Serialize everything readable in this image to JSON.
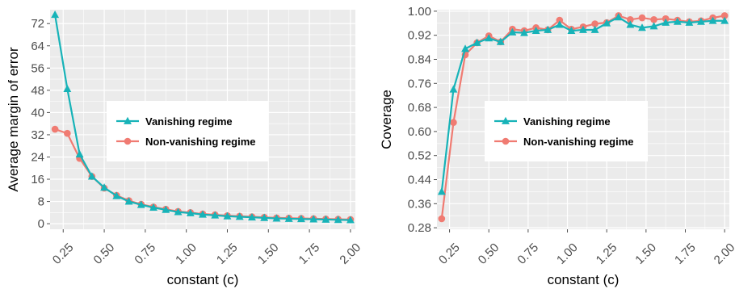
{
  "colors": {
    "panel_bg": "#ebebeb",
    "grid": "#ffffff",
    "vanishing": "#17b3b8",
    "non_vanishing": "#f07b72",
    "tick": "#4d4d4d"
  },
  "chart_data": [
    {
      "type": "line",
      "xlabel": "constant (c)",
      "ylabel": "Average margin of error",
      "xlim": [
        0.17,
        2.03
      ],
      "ylim": [
        -2,
        77
      ],
      "x_ticks": [
        "0.25",
        "0.50",
        "0.75",
        "1.00",
        "1.25",
        "1.50",
        "1.75",
        "2.00"
      ],
      "y_ticks": [
        "0",
        "8",
        "16",
        "24",
        "32",
        "40",
        "48",
        "56",
        "64",
        "72"
      ],
      "grid": true,
      "legend_position": "center",
      "x": [
        0.2,
        0.275,
        0.35,
        0.425,
        0.5,
        0.575,
        0.65,
        0.725,
        0.8,
        0.875,
        0.95,
        1.025,
        1.1,
        1.175,
        1.25,
        1.325,
        1.4,
        1.475,
        1.55,
        1.625,
        1.7,
        1.775,
        1.85,
        1.925,
        2.0
      ],
      "series": [
        {
          "name": "Vanishing regime",
          "marker": "triangle",
          "values": [
            75.2,
            48.5,
            25.0,
            17.0,
            13.0,
            10.0,
            8.0,
            6.8,
            5.8,
            5.0,
            4.2,
            3.8,
            3.3,
            3.0,
            2.7,
            2.5,
            2.3,
            2.1,
            1.9,
            1.8,
            1.7,
            1.6,
            1.5,
            1.4,
            1.3
          ]
        },
        {
          "name": "Non-vanishing regime",
          "marker": "circle",
          "values": [
            34.0,
            32.5,
            23.5,
            17.0,
            12.8,
            10.2,
            8.3,
            7.0,
            6.0,
            5.2,
            4.4,
            4.0,
            3.5,
            3.2,
            2.9,
            2.7,
            2.5,
            2.3,
            2.1,
            2.0,
            1.9,
            1.8,
            1.7,
            1.6,
            1.5
          ]
        }
      ]
    },
    {
      "type": "line",
      "xlabel": "constant (c)",
      "ylabel": "Coverage",
      "xlim": [
        0.17,
        2.03
      ],
      "ylim": [
        0.275,
        1.005
      ],
      "x_ticks": [
        "0.25",
        "0.50",
        "0.75",
        "1.00",
        "1.25",
        "1.50",
        "1.75",
        "2.00"
      ],
      "y_ticks": [
        "0.28",
        "0.36",
        "0.44",
        "0.52",
        "0.60",
        "0.68",
        "0.76",
        "0.84",
        "0.92",
        "1.00"
      ],
      "grid": true,
      "legend_position": "center",
      "x": [
        0.2,
        0.275,
        0.35,
        0.425,
        0.5,
        0.575,
        0.65,
        0.725,
        0.8,
        0.875,
        0.95,
        1.025,
        1.1,
        1.175,
        1.25,
        1.325,
        1.4,
        1.475,
        1.55,
        1.625,
        1.7,
        1.775,
        1.85,
        1.925,
        2.0
      ],
      "series": [
        {
          "name": "Vanishing regime",
          "marker": "triangle",
          "values": [
            0.4,
            0.74,
            0.875,
            0.895,
            0.91,
            0.898,
            0.93,
            0.928,
            0.935,
            0.938,
            0.955,
            0.935,
            0.938,
            0.938,
            0.96,
            0.98,
            0.955,
            0.945,
            0.95,
            0.962,
            0.965,
            0.962,
            0.965,
            0.968,
            0.968
          ]
        },
        {
          "name": "Non-vanishing regime",
          "marker": "circle",
          "values": [
            0.31,
            0.63,
            0.855,
            0.895,
            0.918,
            0.898,
            0.94,
            0.935,
            0.945,
            0.938,
            0.97,
            0.94,
            0.948,
            0.958,
            0.962,
            0.985,
            0.972,
            0.978,
            0.972,
            0.975,
            0.97,
            0.965,
            0.968,
            0.978,
            0.985
          ]
        }
      ]
    }
  ]
}
